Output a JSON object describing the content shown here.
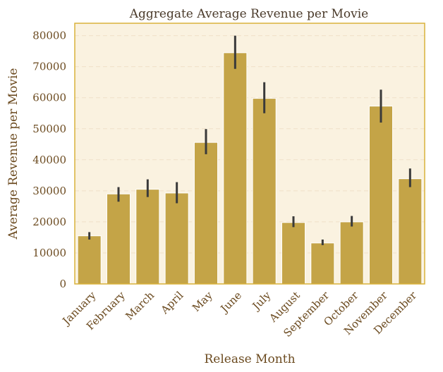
{
  "chart_data": {
    "type": "bar",
    "title": "Aggregate Average Revenue per Movie",
    "xlabel": "Release Month",
    "ylabel": "Average Revenue per Movie",
    "categories": [
      "January",
      "February",
      "March",
      "April",
      "May",
      "June",
      "July",
      "August",
      "September",
      "October",
      "November",
      "December"
    ],
    "values": [
      15500,
      29000,
      30500,
      29300,
      45600,
      74500,
      59800,
      19800,
      13200,
      20000,
      57300,
      33900
    ],
    "error_low": [
      14300,
      26500,
      28000,
      26000,
      41800,
      69300,
      55000,
      18300,
      12500,
      18500,
      52000,
      31200
    ],
    "error_high": [
      16700,
      31200,
      33700,
      32800,
      49900,
      80000,
      65000,
      21800,
      14300,
      21900,
      62600,
      37200
    ],
    "yticks": [
      0,
      10000,
      20000,
      30000,
      40000,
      50000,
      60000,
      70000,
      80000
    ],
    "ylim": [
      0,
      84000
    ],
    "grid": "horizontal-dashed",
    "colors": {
      "bar": "#c4a447",
      "plot_bg": "#faf2e0",
      "frame": "#d9b23a",
      "grid": "#f0e0c8",
      "error": "#3a3a3a",
      "text": "#6b4a1f"
    }
  }
}
